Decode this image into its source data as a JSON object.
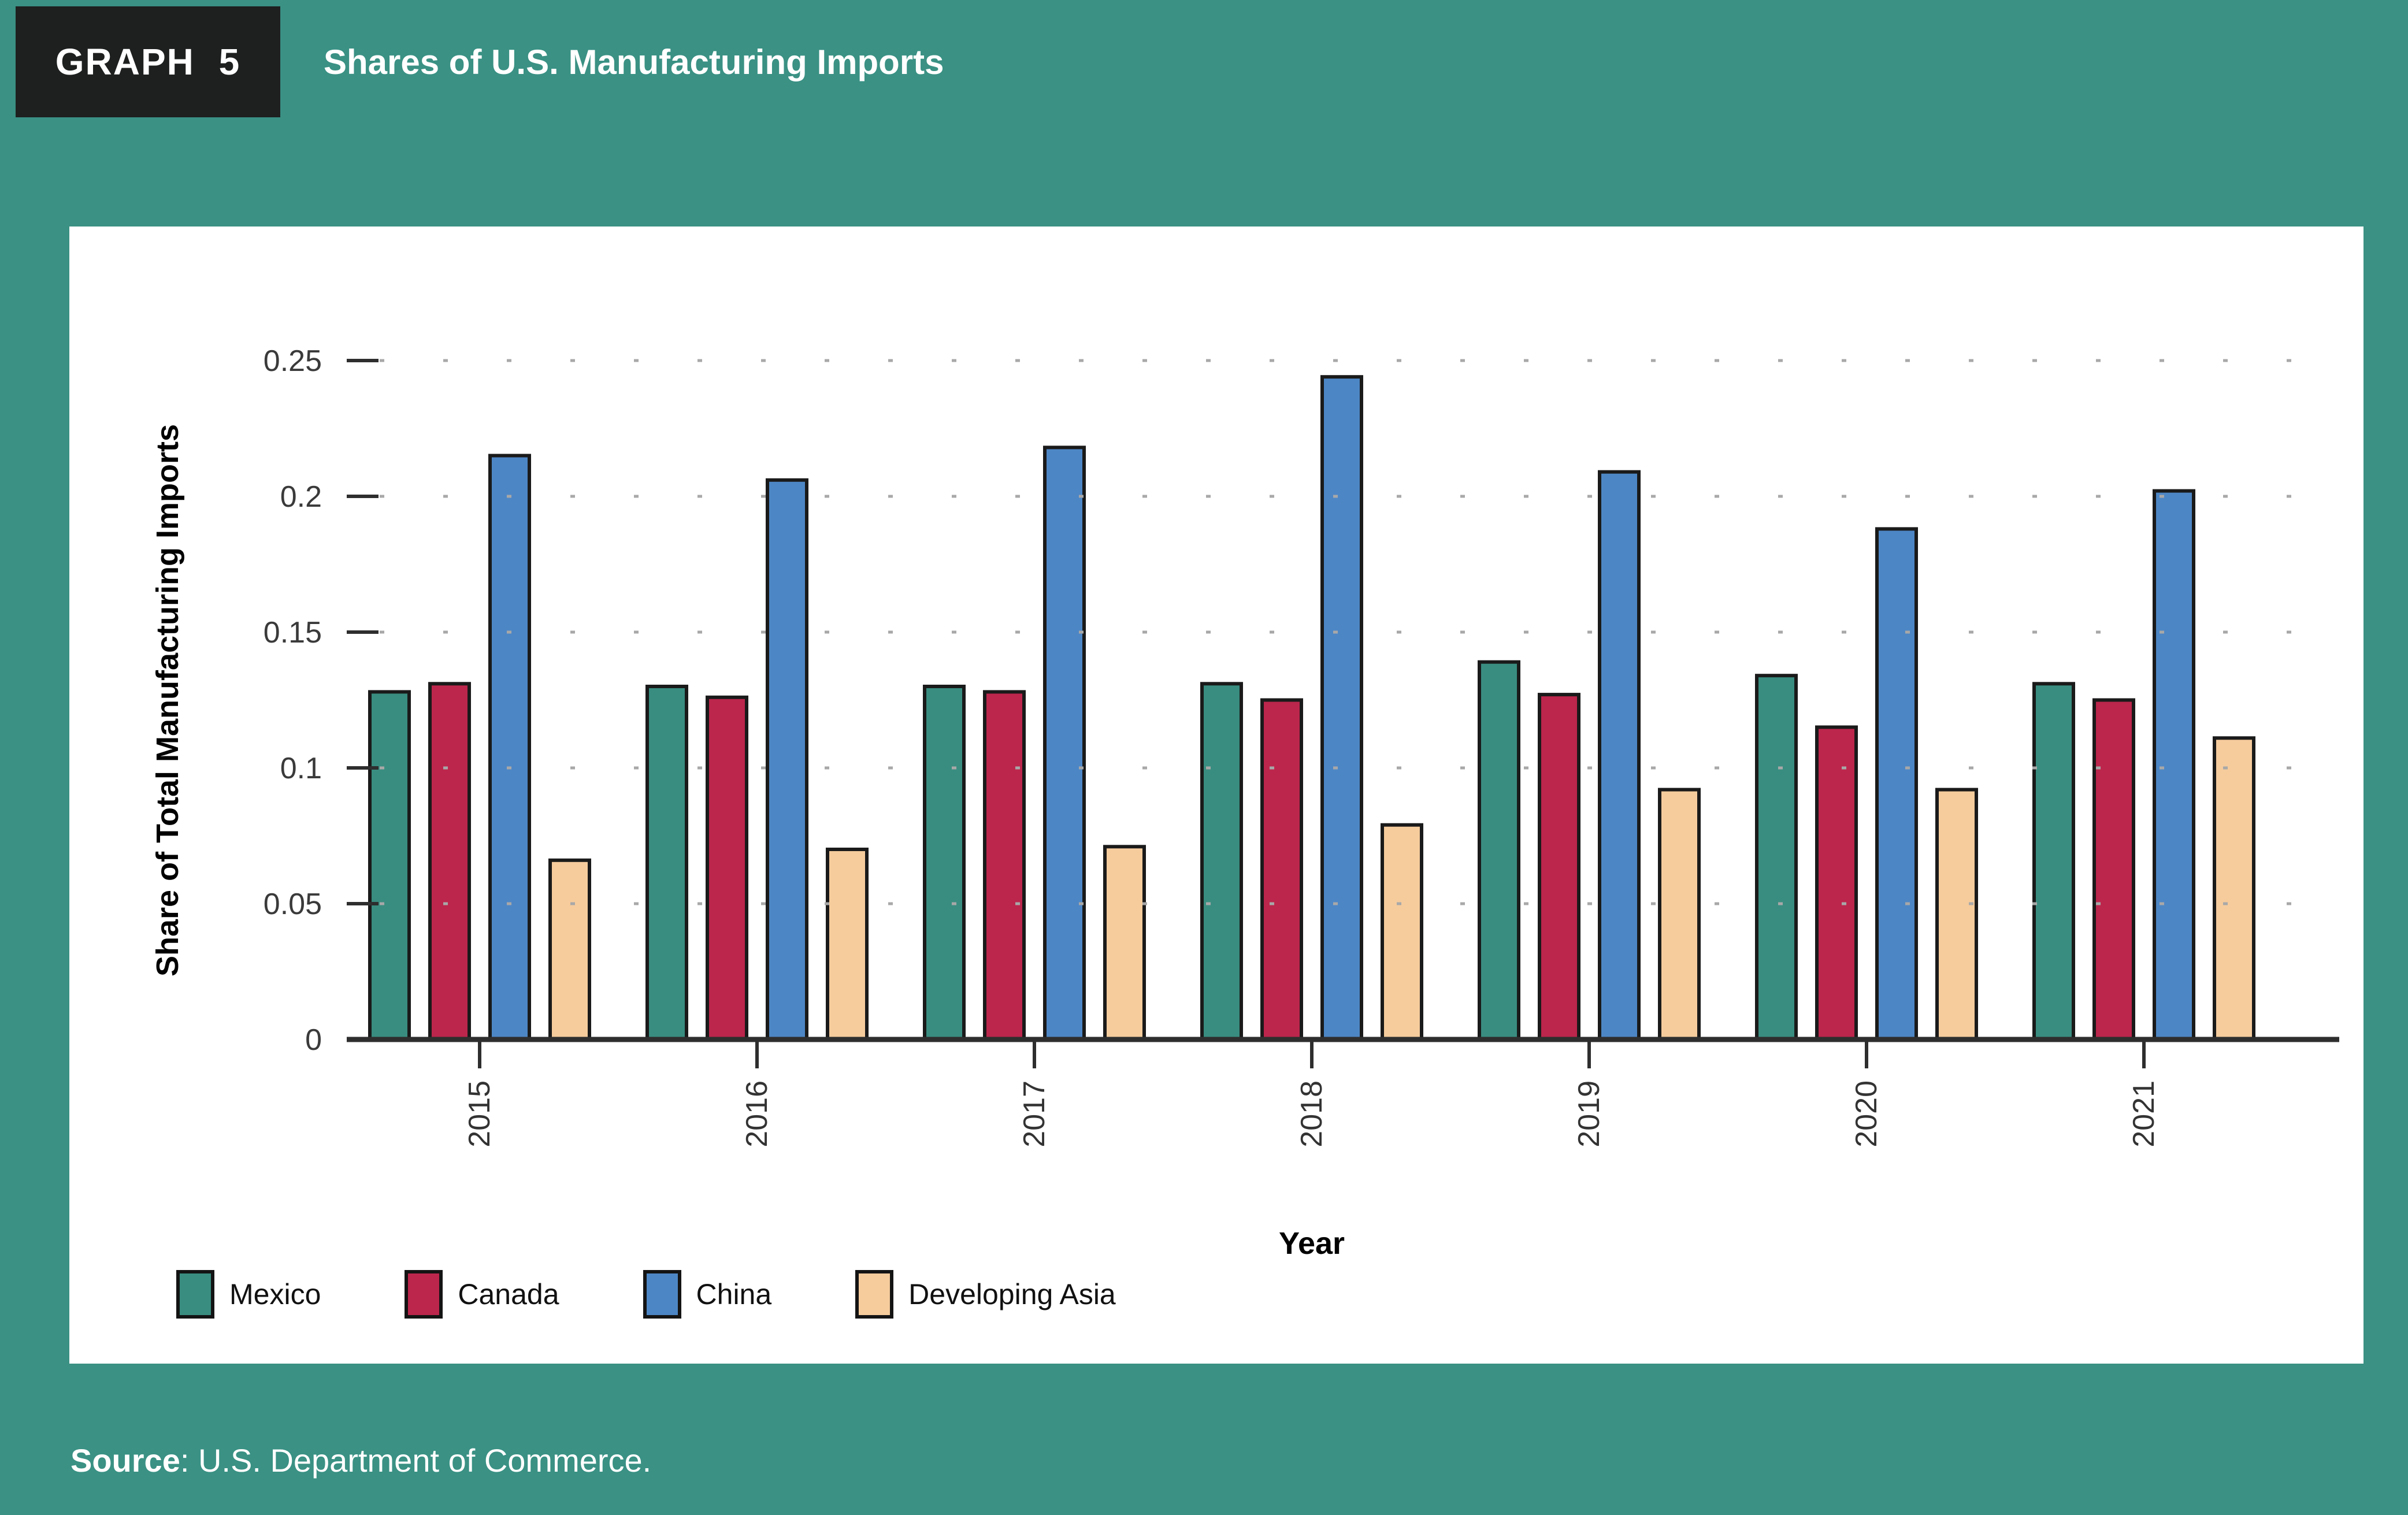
{
  "header": {
    "graph_label": "GRAPH 5",
    "title": "Shares of U.S. Manufacturing Imports"
  },
  "source": {
    "label": "Source",
    "rest": ": U.S. Department of Commerce."
  },
  "colors": {
    "background": "#3A9184",
    "header_box": "#1E1F1F",
    "panel": "#FFFFFF",
    "bar_border": "#1A1A1A",
    "axis": "#2E2E2E",
    "tick_label": "#3A3A3A",
    "year_label": "#333333",
    "gridline": "#A8A8A8",
    "mexico": "#398D80",
    "canada": "#BC264C",
    "china": "#4D86C5",
    "developing_asia": "#F6CC9D"
  },
  "chart_data": {
    "type": "bar",
    "title": "Shares of U.S. Manufacturing Imports",
    "xlabel": "Year",
    "ylabel": "Share of Total Manufacturing Imports",
    "categories": [
      "2015",
      "2016",
      "2017",
      "2018",
      "2019",
      "2020",
      "2021"
    ],
    "series": [
      {
        "name": "Mexico",
        "color": "#398D80",
        "values": [
          0.128,
          0.13,
          0.13,
          0.131,
          0.139,
          0.134,
          0.131
        ]
      },
      {
        "name": "Canada",
        "color": "#BC264C",
        "values": [
          0.131,
          0.126,
          0.128,
          0.125,
          0.127,
          0.115,
          0.125
        ]
      },
      {
        "name": "China",
        "color": "#4D86C5",
        "values": [
          0.215,
          0.206,
          0.218,
          0.244,
          0.209,
          0.188,
          0.202
        ]
      },
      {
        "name": "Developing Asia",
        "color": "#F6CC9D",
        "values": [
          0.066,
          0.07,
          0.071,
          0.079,
          0.092,
          0.092,
          0.111
        ]
      }
    ],
    "ylim": [
      0,
      0.25
    ],
    "yticks": [
      0,
      0.05,
      0.1,
      0.15,
      0.2,
      0.25
    ],
    "ytick_labels": [
      "0",
      "0.05",
      "0.1",
      "0.15",
      "0.2",
      "0.25"
    ],
    "grid": "dotted-horizontal-over-bars",
    "legend_position": "bottom-left",
    "x_tick_label_rotation": -90
  }
}
